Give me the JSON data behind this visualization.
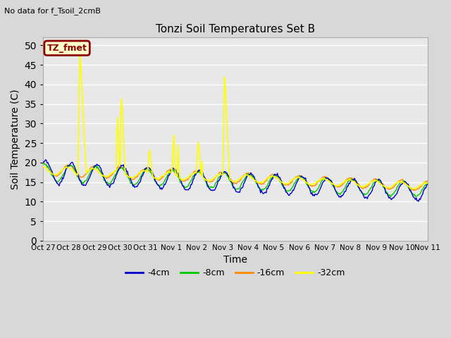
{
  "title": "Tonzi Soil Temperatures Set B",
  "subtitle": "No data for f_Tsoil_2cmB",
  "xlabel": "Time",
  "ylabel": "Soil Temperature (C)",
  "ylim": [
    0,
    52
  ],
  "yticks": [
    0,
    5,
    10,
    15,
    20,
    25,
    30,
    35,
    40,
    45,
    50
  ],
  "bg_color": "#e0e0e0",
  "plot_bg_color": "#e8e8e8",
  "grid_color": "#ffffff",
  "legend_label": "TZ_fmet",
  "legend_box_color": "#ffffcc",
  "legend_box_edge": "#8B0000",
  "series_colors": {
    "4cm": "#0000cc",
    "8cm": "#00cc00",
    "16cm": "#ff8800",
    "32cm": "#ffff00"
  },
  "x_labels": [
    "Oct 27",
    "Oct 28",
    "Oct 29",
    "Oct 30",
    "Oct 31",
    "Nov 1",
    "Nov 2",
    "Nov 3",
    "Nov 4",
    "Nov 5",
    "Nov 6",
    "Nov 7",
    "Nov 8",
    "Nov 9",
    "Nov 10",
    "Nov 11"
  ],
  "num_points": 480,
  "days": 15
}
